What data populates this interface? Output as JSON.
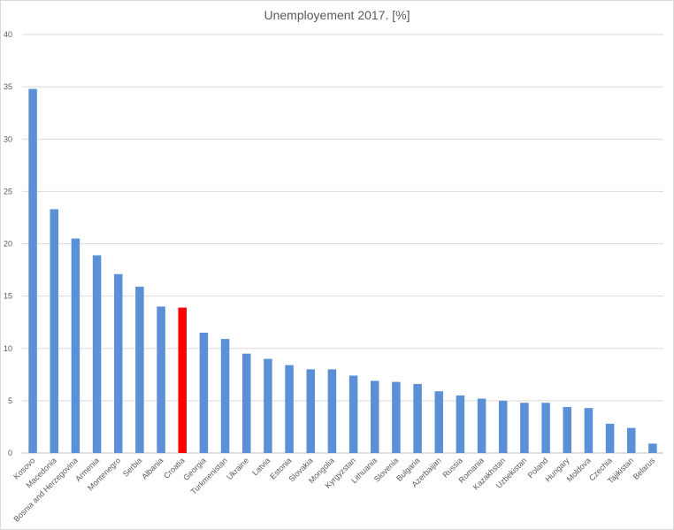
{
  "chart_data": {
    "type": "bar",
    "title": "Unemployement 2017. [%]",
    "xlabel": "",
    "ylabel": "",
    "ylim": [
      0,
      40
    ],
    "yticks": [
      0,
      5,
      10,
      15,
      20,
      25,
      30,
      35,
      40
    ],
    "grid": true,
    "legend": "none",
    "bar_color": "#5b8fd6",
    "highlight_color": "#ff0000",
    "highlight_category": "Croatia",
    "categories": [
      "Kosovo",
      "Macedonia",
      "Bosnia and Herzegovina",
      "Armenia",
      "Montenegro",
      "Serbia",
      "Albania",
      "Croatia",
      "Georgia",
      "Turkmenistan",
      "Ukraine",
      "Latvia",
      "Estonia",
      "Slovakia",
      "Mongolia",
      "Kyrgyzstan",
      "Lithuania",
      "Slovenia",
      "Bulgaria",
      "Azerbaijan",
      "Russia",
      "Romania",
      "Kazakhstan",
      "Uzbekistan",
      "Poland",
      "Hungary",
      "Moldova",
      "Czechia",
      "Tajikistan",
      "Belarus"
    ],
    "values": [
      34.8,
      23.3,
      20.5,
      18.9,
      17.1,
      15.9,
      14.0,
      13.9,
      11.5,
      10.9,
      9.5,
      9.0,
      8.4,
      8.0,
      8.0,
      7.4,
      6.9,
      6.8,
      6.6,
      5.9,
      5.5,
      5.2,
      5.0,
      4.8,
      4.8,
      4.4,
      4.3,
      2.8,
      2.4,
      0.9
    ]
  }
}
